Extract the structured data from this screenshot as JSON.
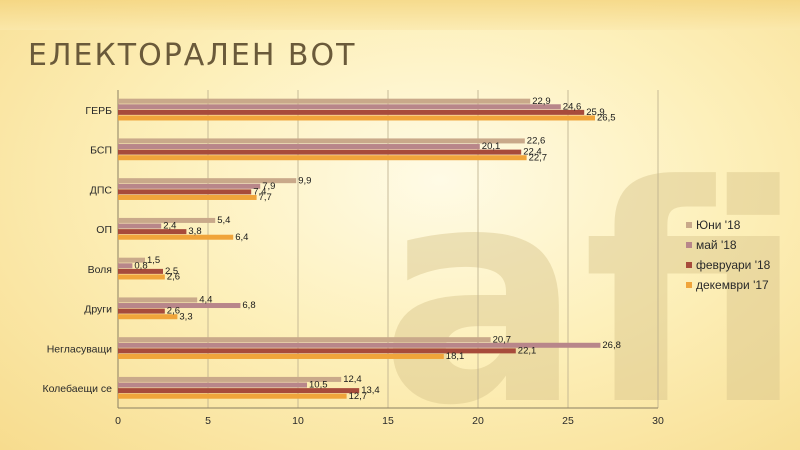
{
  "title": "ЕЛЕКТОРАЛЕН ВОТ",
  "logo_text": "afis",
  "chart_data": {
    "type": "bar",
    "orientation": "horizontal",
    "categories": [
      "ГЕРБ",
      "БСП",
      "ДПС",
      "ОП",
      "Воля",
      "Други",
      "Негласуващи",
      "Колебаещи  се"
    ],
    "series": [
      {
        "name": "Юни '18",
        "color": "#c9a98a",
        "values": [
          22.9,
          22.6,
          9.9,
          5.4,
          1.5,
          4.4,
          20.7,
          12.4
        ],
        "labels": [
          "22,9",
          "22,6",
          "9,9",
          "5,4",
          "1,5",
          "4,4",
          "20,7",
          "12,4"
        ]
      },
      {
        "name": "май '18",
        "color": "#b8868a",
        "values": [
          24.6,
          20.1,
          7.9,
          2.4,
          0.8,
          6.8,
          26.8,
          10.5
        ],
        "labels": [
          "24,6",
          "20,1",
          "7,9",
          "2,4",
          "0,8",
          "6,8",
          "26,8",
          "10,5"
        ]
      },
      {
        "name": "февруари '18",
        "color": "#a74b3b",
        "values": [
          25.9,
          22.4,
          7.4,
          3.8,
          2.5,
          2.6,
          22.1,
          13.4
        ],
        "labels": [
          "25,9",
          "22,4",
          "7,4",
          "3,8",
          "2,5",
          "2,6",
          "22,1",
          "13,4"
        ]
      },
      {
        "name": "декември '17",
        "color": "#f0a43a",
        "values": [
          26.5,
          22.7,
          7.7,
          6.4,
          2.6,
          3.3,
          18.1,
          12.7
        ],
        "labels": [
          "26,5",
          "22,7",
          "7,7",
          "6,4",
          "2,6",
          "3,3",
          "18,1",
          "12,7"
        ]
      }
    ],
    "xlim": [
      0,
      30
    ],
    "xticks": [
      0,
      5,
      10,
      15,
      20,
      25,
      30
    ],
    "grid": true,
    "legend_position": "right"
  }
}
